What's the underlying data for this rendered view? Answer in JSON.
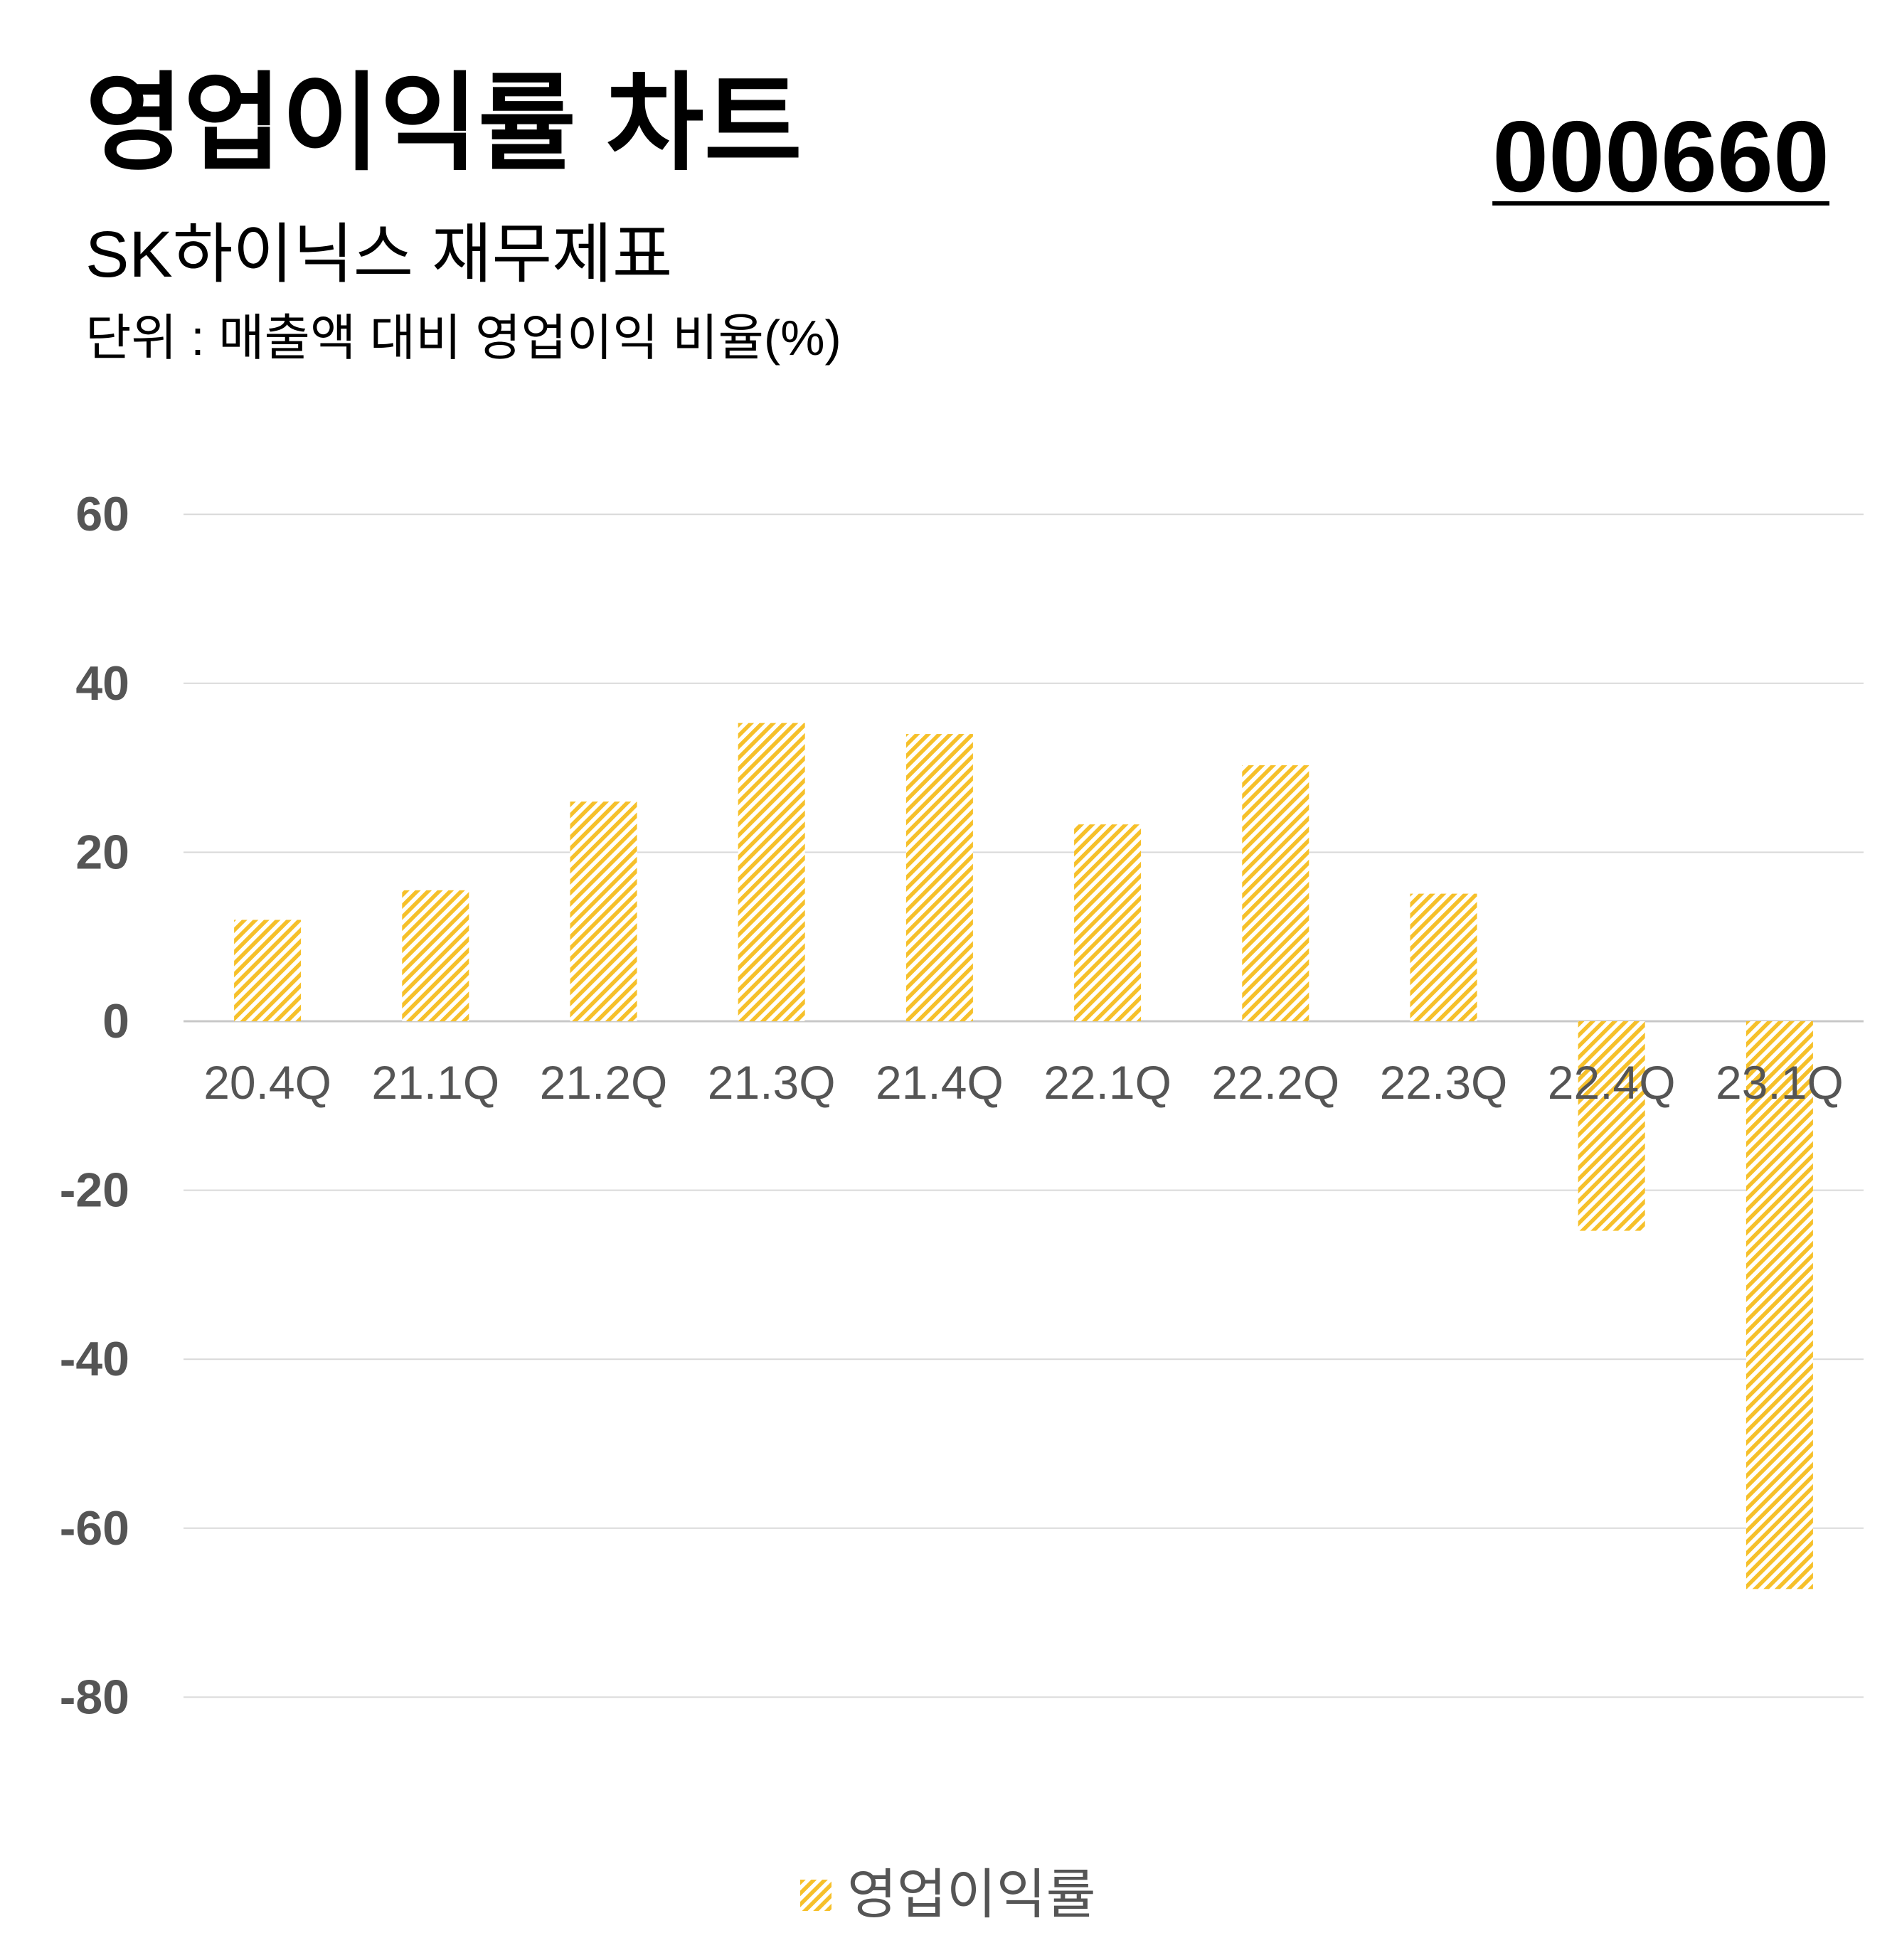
{
  "header": {
    "title": "영업이익률 차트",
    "ticker": "000660",
    "subtitle": "SK하이닉스 재무제표",
    "unit": "단위 : 매출액 대비 영업이익 비율(%)"
  },
  "legend": {
    "label": "영업이익률",
    "icon": "hatched-swatch-icon"
  },
  "colors": {
    "bar_hatch": "#F6C02A",
    "axis_text": "#555555",
    "gridline": "#D9D9D9",
    "background": "#FFFFFF"
  },
  "chart_data": {
    "type": "bar",
    "categories": [
      "20.4Q",
      "21.1Q",
      "21.2Q",
      "21.3Q",
      "21.4Q",
      "22.1Q",
      "22.2Q",
      "22.3Q",
      "22.4Q",
      "23.1Q"
    ],
    "series": [
      {
        "name": "영업이익률",
        "values": [
          12.0,
          15.5,
          26.0,
          35.3,
          34.0,
          23.3,
          30.3,
          15.1,
          -24.8,
          -67.2
        ]
      }
    ],
    "yticks": [
      60,
      40,
      20,
      0,
      -20,
      -40,
      -60,
      -80
    ],
    "ylim": [
      -80,
      60
    ],
    "grid": true,
    "legend_position": "bottom",
    "bar_fill": "diagonal-hatch"
  }
}
